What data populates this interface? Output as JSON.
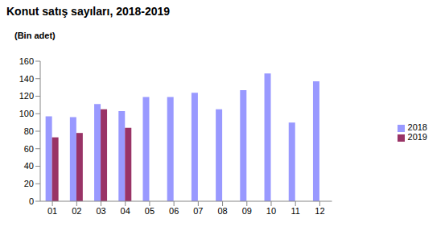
{
  "chart_data": {
    "type": "bar",
    "title": "Konut satış sayıları, 2018-2019",
    "y_label": "(Bin adet)",
    "categories": [
      "01",
      "02",
      "03",
      "04",
      "05",
      "06",
      "07",
      "08",
      "09",
      "10",
      "11",
      "12"
    ],
    "series": [
      {
        "name": "2018",
        "color": "#9999FF",
        "values": [
          97,
          96,
          111,
          103,
          119,
          119,
          124,
          105,
          127,
          146,
          90,
          137
        ]
      },
      {
        "name": "2019",
        "color": "#993366",
        "values": [
          73,
          78,
          105,
          84,
          null,
          null,
          null,
          null,
          null,
          null,
          null,
          null
        ]
      }
    ],
    "ylim": [
      0,
      160
    ],
    "yticks": [
      0,
      20,
      40,
      60,
      80,
      100,
      120,
      140,
      160
    ],
    "grid": false,
    "legend": "right"
  }
}
